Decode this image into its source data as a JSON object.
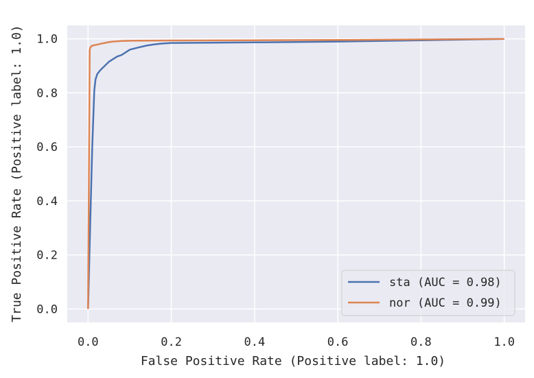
{
  "chart_data": {
    "type": "line",
    "xlabel": "False Positive Rate (Positive label: 1.0)",
    "ylabel": "True Positive Rate (Positive label: 1.0)",
    "xlim": [
      -0.05,
      1.05
    ],
    "ylim": [
      -0.05,
      1.05
    ],
    "x_ticks": [
      "0.0",
      "0.2",
      "0.4",
      "0.6",
      "0.8",
      "1.0"
    ],
    "y_ticks": [
      "0.0",
      "0.2",
      "0.4",
      "0.6",
      "0.8",
      "1.0"
    ],
    "grid": true,
    "legend_position": "lower-right",
    "background": "#eaeaf2",
    "series": [
      {
        "name": "sta (AUC = 0.98)",
        "color": "#4c72b0",
        "x": [
          0,
          0.005,
          0.01,
          0.015,
          0.018,
          0.022,
          0.03,
          0.04,
          0.05,
          0.06,
          0.07,
          0.08,
          0.09,
          0.1,
          0.12,
          0.14,
          0.16,
          0.18,
          0.2,
          0.4,
          0.6,
          0.8,
          1.0
        ],
        "y": [
          0,
          0.3,
          0.6,
          0.81,
          0.85,
          0.87,
          0.885,
          0.9,
          0.915,
          0.925,
          0.935,
          0.94,
          0.95,
          0.96,
          0.968,
          0.975,
          0.98,
          0.983,
          0.985,
          0.987,
          0.99,
          0.995,
          1.0
        ]
      },
      {
        "name": "nor (AUC = 0.99)",
        "color": "#dd8452",
        "x": [
          0,
          0.003,
          0.004,
          0.006,
          0.01,
          0.02,
          0.03,
          0.04,
          0.05,
          0.06,
          0.08,
          0.1,
          0.2,
          0.4,
          0.6,
          0.8,
          1.0
        ],
        "y": [
          0,
          0.7,
          0.96,
          0.97,
          0.975,
          0.978,
          0.982,
          0.985,
          0.988,
          0.99,
          0.992,
          0.993,
          0.994,
          0.995,
          0.996,
          0.998,
          1.0
        ]
      }
    ]
  }
}
